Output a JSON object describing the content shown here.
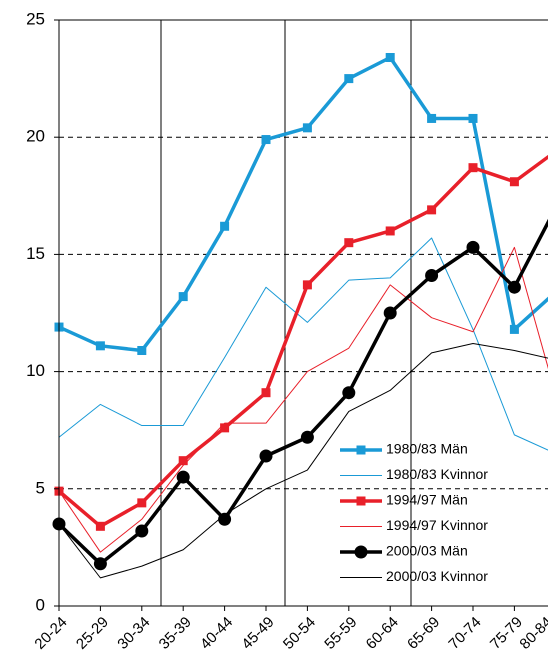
{
  "chart_data": {
    "type": "line",
    "categories": [
      "20-24",
      "25-29",
      "30-34",
      "35-39",
      "40-44",
      "45-49",
      "50-54",
      "55-59",
      "60-64",
      "65-69",
      "70-74",
      "75-79",
      "80-84"
    ],
    "ylim": [
      0,
      25
    ],
    "yticks": [
      0,
      5,
      10,
      15,
      20,
      25
    ],
    "grid": true,
    "legend": "lower right",
    "series": [
      {
        "name": "1980/83 Män",
        "color": "#1a9ad6",
        "marker": "square",
        "line_width": 3.5,
        "values": [
          11.9,
          11.1,
          10.9,
          13.2,
          16.2,
          19.9,
          20.4,
          22.5,
          23.4,
          20.8,
          20.8,
          11.8,
          13.4
        ]
      },
      {
        "name": "1980/83 Kvinnor",
        "color": "#1a9ad6",
        "marker": null,
        "line_width": 1,
        "values": [
          7.2,
          8.6,
          7.7,
          7.7,
          10.6,
          13.6,
          12.1,
          13.9,
          14.0,
          15.7,
          11.8,
          7.3,
          6.5
        ]
      },
      {
        "name": "1994/97 Män",
        "color": "#e8202a",
        "marker": "square",
        "line_width": 3.5,
        "values": [
          4.9,
          3.4,
          4.4,
          6.2,
          7.6,
          9.1,
          13.7,
          15.5,
          16.0,
          16.9,
          18.7,
          18.1,
          19.4
        ]
      },
      {
        "name": "1994/97 Kvinnor",
        "color": "#e8202a",
        "marker": null,
        "line_width": 1,
        "values": [
          4.9,
          2.3,
          3.7,
          6.0,
          7.8,
          7.8,
          10.0,
          11.0,
          13.7,
          12.3,
          11.7,
          15.3,
          9.0
        ]
      },
      {
        "name": "2000/03 Män",
        "color": "#000000",
        "marker": "circle",
        "line_width": 3.5,
        "values": [
          3.5,
          1.8,
          3.2,
          5.5,
          3.7,
          6.4,
          7.2,
          9.1,
          12.5,
          14.1,
          15.3,
          13.6,
          17.0
        ]
      },
      {
        "name": "2000/03 Kvinnor",
        "color": "#000000",
        "marker": null,
        "line_width": 1,
        "values": [
          3.5,
          1.2,
          1.7,
          2.4,
          3.9,
          5.0,
          5.8,
          8.3,
          9.2,
          10.8,
          11.2,
          10.9,
          10.5
        ]
      }
    ]
  }
}
